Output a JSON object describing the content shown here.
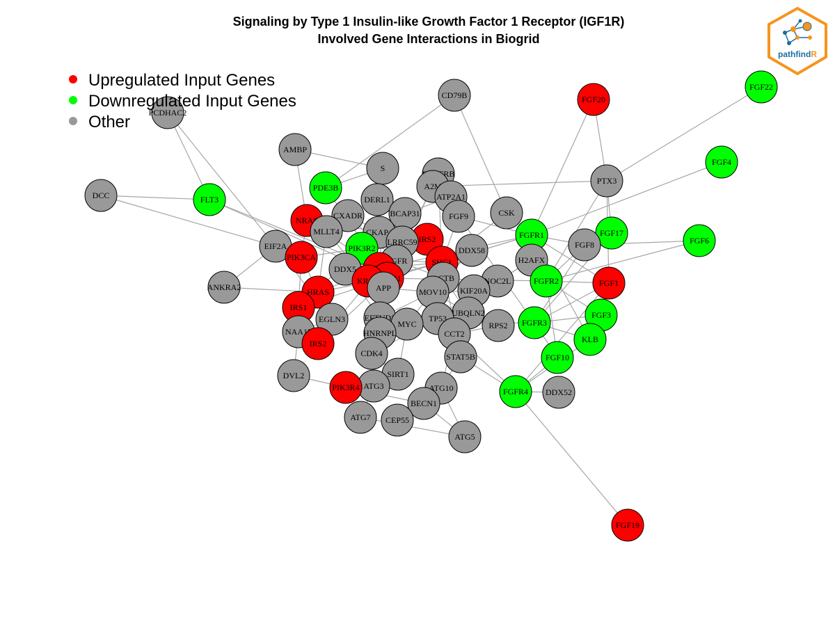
{
  "title": {
    "line1": "Signaling by Type 1 Insulin-like Growth Factor 1 Receptor (IGF1R)",
    "line2": "Involved Gene Interactions in Biogrid"
  },
  "legend": [
    {
      "label": "Upregulated Input Genes",
      "color": "#ff0000"
    },
    {
      "label": "Downregulated Input Genes",
      "color": "#00ff00"
    },
    {
      "label": "Other",
      "color": "#999999"
    }
  ],
  "logo": {
    "text_main": "pathfind",
    "text_accent": "R",
    "accent_color": "#f7941d",
    "main_color": "#1b6f9f"
  },
  "colors": {
    "up": "#ff0000",
    "down": "#00ff00",
    "other": "#999999",
    "edge": "#a6a6a6"
  },
  "nodes": [
    {
      "id": "PCDHAC2",
      "cat": "other"
    },
    {
      "id": "CD79B",
      "cat": "other"
    },
    {
      "id": "FGF20",
      "cat": "up"
    },
    {
      "id": "FGF22",
      "cat": "down"
    },
    {
      "id": "AMBP",
      "cat": "other"
    },
    {
      "id": "S",
      "cat": "other"
    },
    {
      "id": "PDGFRB",
      "cat": "other"
    },
    {
      "id": "FGF4",
      "cat": "down"
    },
    {
      "id": "DCC",
      "cat": "other"
    },
    {
      "id": "FLT3",
      "cat": "down"
    },
    {
      "id": "PDE3B",
      "cat": "down"
    },
    {
      "id": "DERL1",
      "cat": "other"
    },
    {
      "id": "A2M",
      "cat": "other"
    },
    {
      "id": "ATP2A1",
      "cat": "other"
    },
    {
      "id": "PTX3",
      "cat": "other"
    },
    {
      "id": "CXADR",
      "cat": "other"
    },
    {
      "id": "BCAP31",
      "cat": "other"
    },
    {
      "id": "FGF9",
      "cat": "other"
    },
    {
      "id": "CSK",
      "cat": "other"
    },
    {
      "id": "NRAS",
      "cat": "up"
    },
    {
      "id": "MLLT4",
      "cat": "other"
    },
    {
      "id": "CKAP4",
      "cat": "other"
    },
    {
      "id": "FGFR1",
      "cat": "down"
    },
    {
      "id": "FGF17",
      "cat": "down"
    },
    {
      "id": "FGF6",
      "cat": "down"
    },
    {
      "id": "IRS2",
      "cat": "up"
    },
    {
      "id": "EIF2A",
      "cat": "other"
    },
    {
      "id": "PIK3R2",
      "cat": "down"
    },
    {
      "id": "LRRC59",
      "cat": "other"
    },
    {
      "id": "FGF8",
      "cat": "other"
    },
    {
      "id": "DDX58",
      "cat": "other"
    },
    {
      "id": "PIK3CA",
      "cat": "up"
    },
    {
      "id": "EGFR",
      "cat": "other"
    },
    {
      "id": "SHC1",
      "cat": "up"
    },
    {
      "id": "H2AFX",
      "cat": "other"
    },
    {
      "id": "DDX5",
      "cat": "other"
    },
    {
      "id": "GRB2",
      "cat": "up"
    },
    {
      "id": "ACTB",
      "cat": "other"
    },
    {
      "id": "PIK3R1",
      "cat": "up"
    },
    {
      "id": "KRAS",
      "cat": "up"
    },
    {
      "id": "APP",
      "cat": "other"
    },
    {
      "id": "ANKRA2",
      "cat": "other"
    },
    {
      "id": "NOC2L",
      "cat": "other"
    },
    {
      "id": "FGFR2",
      "cat": "down"
    },
    {
      "id": "FGF1",
      "cat": "up"
    },
    {
      "id": "HRAS",
      "cat": "up"
    },
    {
      "id": "MOV10",
      "cat": "other"
    },
    {
      "id": "KIF20A",
      "cat": "other"
    },
    {
      "id": "IRS1",
      "cat": "up"
    },
    {
      "id": "UBQLN2",
      "cat": "other"
    },
    {
      "id": "FGF3",
      "cat": "down"
    },
    {
      "id": "EGLN3",
      "cat": "other"
    },
    {
      "id": "EFTUD2",
      "cat": "other"
    },
    {
      "id": "TP53",
      "cat": "other"
    },
    {
      "id": "MYC",
      "cat": "other"
    },
    {
      "id": "RPS2",
      "cat": "other"
    },
    {
      "id": "FGFR3",
      "cat": "down"
    },
    {
      "id": "NAA15",
      "cat": "other"
    },
    {
      "id": "HNRNPL",
      "cat": "other"
    },
    {
      "id": "CCT2",
      "cat": "other"
    },
    {
      "id": "KLB",
      "cat": "down"
    },
    {
      "id": "IRS2B",
      "label": "IRS2",
      "cat": "up"
    },
    {
      "id": "CDK4",
      "cat": "other"
    },
    {
      "id": "STAT5B",
      "cat": "other"
    },
    {
      "id": "FGF10",
      "cat": "down"
    },
    {
      "id": "DVL2",
      "cat": "other"
    },
    {
      "id": "SIRT1",
      "cat": "other"
    },
    {
      "id": "ATG3",
      "cat": "other"
    },
    {
      "id": "PIK3R4",
      "cat": "up"
    },
    {
      "id": "ATG10",
      "cat": "other"
    },
    {
      "id": "FGFR4",
      "cat": "down"
    },
    {
      "id": "DDX52",
      "cat": "other"
    },
    {
      "id": "BECN1",
      "cat": "other"
    },
    {
      "id": "ATG7",
      "cat": "other"
    },
    {
      "id": "CEP55",
      "cat": "other"
    },
    {
      "id": "ATG5",
      "cat": "other"
    },
    {
      "id": "FGF19",
      "cat": "up"
    }
  ],
  "edges": [
    [
      "PCDHAC2",
      "FLT3"
    ],
    [
      "PCDHAC2",
      "EIF2A"
    ],
    [
      "CD79B",
      "CSK"
    ],
    [
      "CD79B",
      "PDE3B"
    ],
    [
      "FGF20",
      "PTX3"
    ],
    [
      "FGF20",
      "FGFR1"
    ],
    [
      "FGF22",
      "PTX3"
    ],
    [
      "FGF4",
      "FGFR1"
    ],
    [
      "DCC",
      "FLT3"
    ],
    [
      "DCC",
      "EIF2A"
    ],
    [
      "FLT3",
      "GRB2"
    ],
    [
      "FLT3",
      "PIK3R1"
    ],
    [
      "PTX3",
      "A2M"
    ],
    [
      "PTX3",
      "FGF1"
    ],
    [
      "PTX3",
      "FGF17"
    ],
    [
      "PTX3",
      "FGFR2"
    ],
    [
      "FGF6",
      "FGF8"
    ],
    [
      "FGF6",
      "FGFR2"
    ],
    [
      "FGF17",
      "FGFR3"
    ],
    [
      "FGF19",
      "FGFR4"
    ],
    [
      "AMBP",
      "NRAS"
    ],
    [
      "AMBP",
      "S"
    ],
    [
      "S",
      "PDE3B"
    ],
    [
      "S",
      "DERL1"
    ],
    [
      "PDGFRB",
      "EGFR"
    ],
    [
      "PDGFRB",
      "SHC1"
    ],
    [
      "A2M",
      "APP"
    ],
    [
      "ATP2A1",
      "BCAP31"
    ],
    [
      "DERL1",
      "BCAP31"
    ],
    [
      "CXADR",
      "LRRC59"
    ],
    [
      "BCAP31",
      "CKAP4"
    ],
    [
      "FGF9",
      "FGFR1"
    ],
    [
      "FGF9",
      "FGFR3"
    ],
    [
      "CSK",
      "SHC1"
    ],
    [
      "NRAS",
      "IRS2"
    ],
    [
      "MLLT4",
      "HRAS"
    ],
    [
      "CKAP4",
      "LRRC59"
    ],
    [
      "FGFR1",
      "FGF1"
    ],
    [
      "FGFR1",
      "FGF8"
    ],
    [
      "FGFR1",
      "KLB"
    ],
    [
      "FGFR1",
      "GRB2"
    ],
    [
      "FGFR1",
      "SHC1"
    ],
    [
      "IRS2",
      "PIK3R1"
    ],
    [
      "EIF2A",
      "ANKRA2"
    ],
    [
      "EIF2A",
      "EGLN3"
    ],
    [
      "PIK3R2",
      "IRS1"
    ],
    [
      "PIK3R2",
      "PIK3CA"
    ],
    [
      "LRRC59",
      "EGFR"
    ],
    [
      "FGF8",
      "FGFR2"
    ],
    [
      "FGF8",
      "FGFR3"
    ],
    [
      "DDX58",
      "MOV10"
    ],
    [
      "PIK3CA",
      "IRS1"
    ],
    [
      "PIK3CA",
      "HRAS"
    ],
    [
      "EGFR",
      "GRB2"
    ],
    [
      "EGFR",
      "SHC1"
    ],
    [
      "EGFR",
      "PIK3R1"
    ],
    [
      "SHC1",
      "GRB2"
    ],
    [
      "SHC1",
      "KRAS"
    ],
    [
      "H2AFX",
      "NOC2L"
    ],
    [
      "H2AFX",
      "TP53"
    ],
    [
      "DDX5",
      "EFTUD2"
    ],
    [
      "GRB2",
      "KRAS"
    ],
    [
      "GRB2",
      "HRAS"
    ],
    [
      "GRB2",
      "NRAS"
    ],
    [
      "ACTB",
      "MYC"
    ],
    [
      "PIK3R1",
      "IRS1"
    ],
    [
      "PIK3R1",
      "IRS2B"
    ],
    [
      "KRAS",
      "APP"
    ],
    [
      "ANKRA2",
      "HRAS"
    ],
    [
      "NOC2L",
      "TP53"
    ],
    [
      "FGFR2",
      "FGF1"
    ],
    [
      "FGFR2",
      "FGF3"
    ],
    [
      "FGFR2",
      "FGF10"
    ],
    [
      "FGF1",
      "FGFR3"
    ],
    [
      "FGF1",
      "FGFR4"
    ],
    [
      "HRAS",
      "IRS1"
    ],
    [
      "MOV10",
      "UBQLN2"
    ],
    [
      "KIF20A",
      "TP53"
    ],
    [
      "IRS1",
      "NAA15"
    ],
    [
      "UBQLN2",
      "RPS2"
    ],
    [
      "FGF3",
      "FGFR3"
    ],
    [
      "EGLN3",
      "NAA15"
    ],
    [
      "EFTUD2",
      "HNRNPL"
    ],
    [
      "TP53",
      "MYC"
    ],
    [
      "TP53",
      "CCT2"
    ],
    [
      "TP53",
      "STAT5B"
    ],
    [
      "MYC",
      "CDK4"
    ],
    [
      "RPS2",
      "CCT2"
    ],
    [
      "FGFR3",
      "KLB"
    ],
    [
      "FGFR3",
      "FGF10"
    ],
    [
      "NAA15",
      "IRS2B"
    ],
    [
      "HNRNPL",
      "CDK4"
    ],
    [
      "KLB",
      "FGFR4"
    ],
    [
      "CDK4",
      "SIRT1"
    ],
    [
      "STAT5B",
      "ATG10"
    ],
    [
      "FGF10",
      "FGFR4"
    ],
    [
      "DVL2",
      "PIK3R4"
    ],
    [
      "DVL2",
      "NAA15"
    ],
    [
      "SIRT1",
      "ATG3"
    ],
    [
      "ATG3",
      "PIK3R4"
    ],
    [
      "ATG3",
      "ATG7"
    ],
    [
      "PIK3R4",
      "BECN1"
    ],
    [
      "ATG10",
      "ATG5"
    ],
    [
      "ATG10",
      "BECN1"
    ],
    [
      "FGFR4",
      "DDX52"
    ],
    [
      "FGFR4",
      "STAT5B"
    ],
    [
      "BECN1",
      "CEP55"
    ],
    [
      "BECN1",
      "ATG5"
    ],
    [
      "ATG7",
      "ATG5"
    ],
    [
      "CCT2",
      "ATG10"
    ],
    [
      "MOV10",
      "KIF20A"
    ],
    [
      "EGFR",
      "ACTB"
    ],
    [
      "APP",
      "MOV10"
    ],
    [
      "PIK3R2",
      "GRB2"
    ],
    [
      "DDX5",
      "GRB2"
    ],
    [
      "PDE3B",
      "PIK3R1"
    ],
    [
      "MLLT4",
      "KRAS"
    ],
    [
      "CXADR",
      "EGFR"
    ],
    [
      "HRAS",
      "EGLN3"
    ],
    [
      "IRS2B",
      "GRB2"
    ],
    [
      "ACTB",
      "UBQLN2"
    ],
    [
      "DDX58",
      "ACTB"
    ],
    [
      "FGF9",
      "SHC1"
    ],
    [
      "FGFR1",
      "PIK3R1"
    ],
    [
      "FGFR2",
      "PIK3R1"
    ],
    [
      "FGFR3",
      "MYC"
    ],
    [
      "FGFR4",
      "TP53"
    ],
    [
      "CKAP4",
      "APP"
    ],
    [
      "NRAS",
      "PIK3CA"
    ],
    [
      "HRAS",
      "PIK3R1"
    ],
    [
      "SIRT1",
      "MYC"
    ],
    [
      "CDK4",
      "TP53"
    ],
    [
      "EFTUD2",
      "MOV10"
    ],
    [
      "HNRNPL",
      "MYC"
    ],
    [
      "STAT5B",
      "SHC1"
    ],
    [
      "KIF20A",
      "ACTB"
    ]
  ]
}
